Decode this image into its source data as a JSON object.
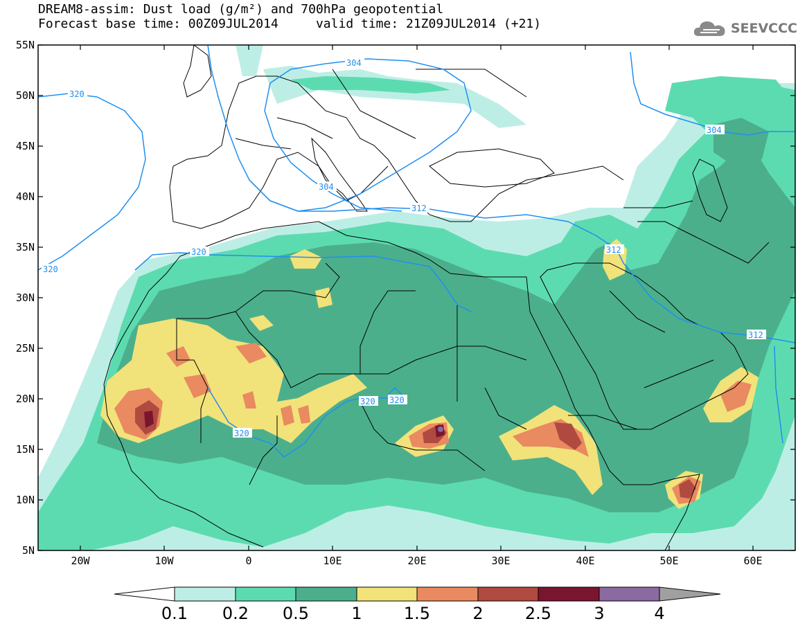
{
  "title": {
    "line1": "DREAM8-assim: Dust load (g/m²) and 700hPa geopotential",
    "line2": "Forecast base time: 00Z09JUL2014     valid time: 21Z09JUL2014 (+21)"
  },
  "logo": {
    "text": "SEEVCCC",
    "icon": "cloud-icon"
  },
  "map": {
    "lat_labels": [
      "55N",
      "50N",
      "45N",
      "40N",
      "35N",
      "30N",
      "25N",
      "20N",
      "15N",
      "10N",
      "5N"
    ],
    "lon_labels": [
      "20W",
      "10W",
      "0",
      "10E",
      "20E",
      "30E",
      "40E",
      "50E",
      "60E"
    ],
    "lon_range": [
      -25,
      65
    ],
    "lat_range": [
      5,
      55
    ],
    "contour_labels": [
      "320",
      "304",
      "320",
      "304",
      "312",
      "320",
      "312",
      "320",
      "320",
      "320",
      "304",
      "312"
    ]
  },
  "colorbar": {
    "labels": [
      "0.1",
      "0.2",
      "0.5",
      "1",
      "1.5",
      "2",
      "2.5",
      "3",
      "4"
    ],
    "colors": [
      "#bdeee6",
      "#5ddbb0",
      "#4caf8c",
      "#f2e27a",
      "#e98a60",
      "#b04a40",
      "#7a1530",
      "#8a6aa0"
    ],
    "under_color": "#ffffff",
    "over_color": "#a0a0a0"
  },
  "colors": {
    "contour": "#1f8ff0",
    "coast": "#000000",
    "dust_01": "#bdeee6",
    "dust_02": "#5ddbb0",
    "dust_05": "#4caf8c",
    "dust_1": "#f2e27a",
    "dust_15": "#e98a60",
    "dust_2": "#b04a40",
    "dust_25": "#7a1530",
    "dust_3": "#8a6aa0"
  }
}
